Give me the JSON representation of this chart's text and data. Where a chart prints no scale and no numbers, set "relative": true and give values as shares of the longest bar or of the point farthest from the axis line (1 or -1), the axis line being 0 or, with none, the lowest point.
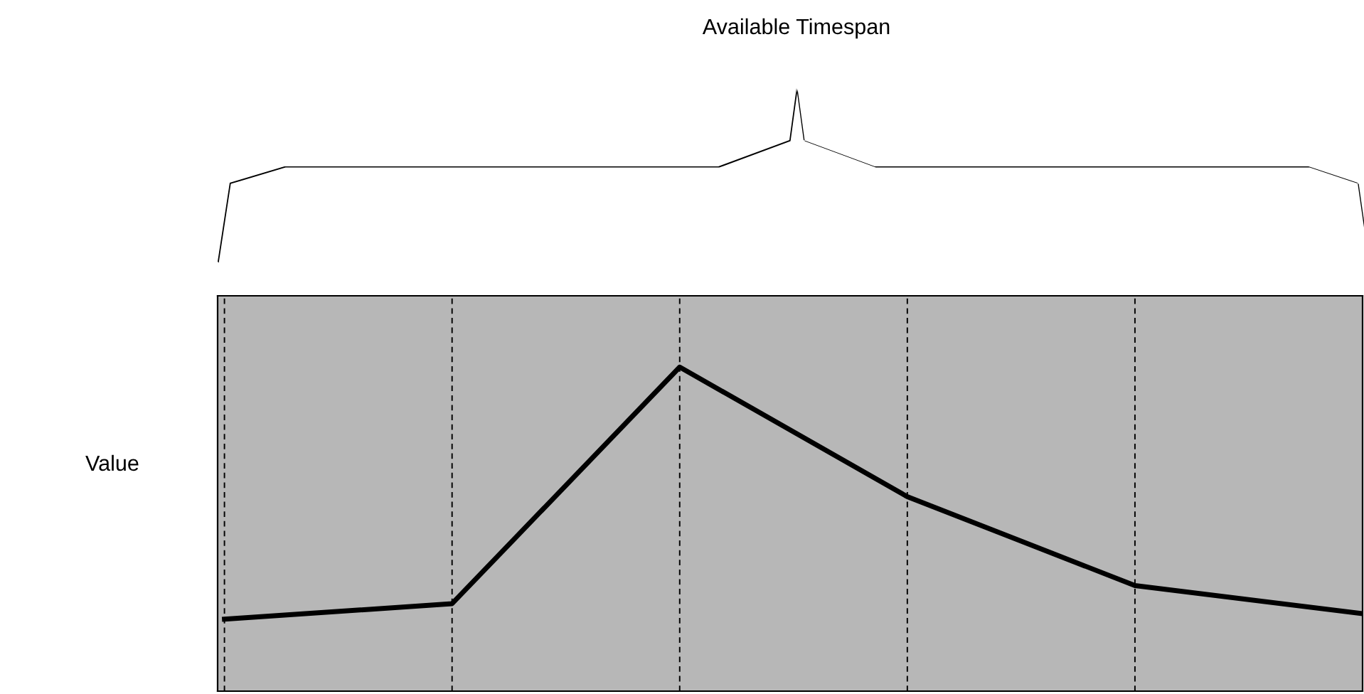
{
  "chart_data": {
    "type": "line",
    "ylabel": "Value",
    "relative": true,
    "categories": [
      null,
      null,
      null,
      null,
      null,
      null
    ],
    "series": [
      {
        "color": "#000000",
        "values": [
          0.222,
          0.27,
          1,
          0.6,
          0.326,
          0.239
        ]
      }
    ],
    "annotations": [
      "Available Timespan"
    ],
    "grid": "x",
    "line_style": "solid",
    "marker": "none",
    "legend": false
  }
}
